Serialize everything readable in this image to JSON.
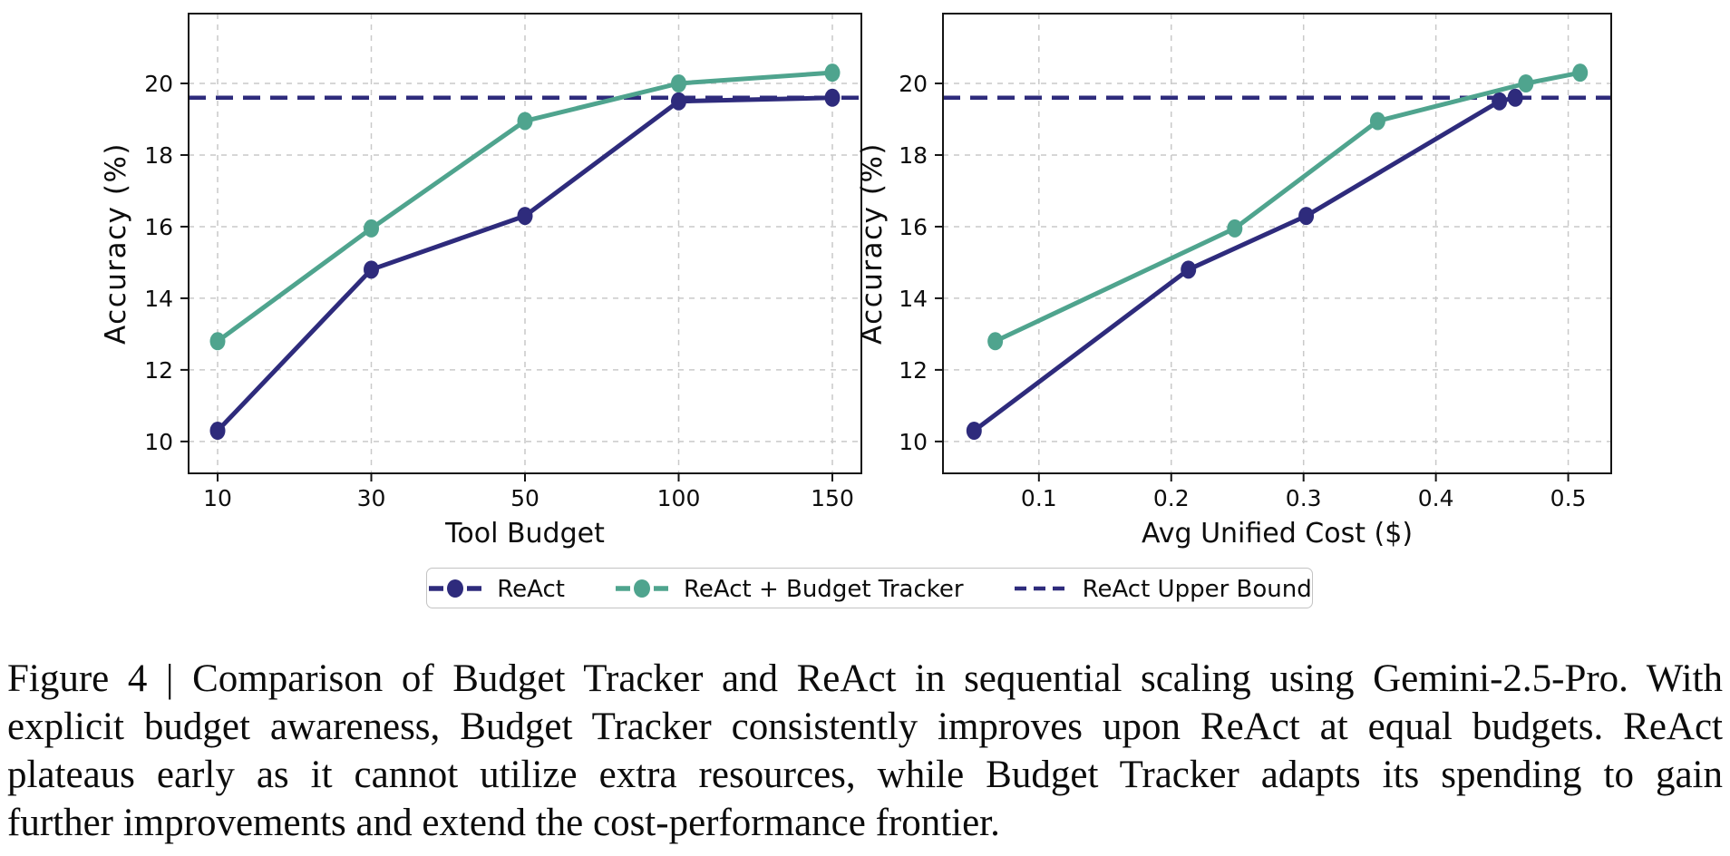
{
  "colors": {
    "react": "#2E2B7C",
    "budget_tracker": "#4FA48E",
    "grid": "#c9c9c9",
    "spine": "#141414",
    "tick_text": "#0d0d0d"
  },
  "legend": {
    "items": [
      {
        "label": "ReAct",
        "marker": "line-circle",
        "color": "#2E2B7C"
      },
      {
        "label": "ReAct + Budget Tracker",
        "marker": "line-circle",
        "color": "#4FA48E"
      },
      {
        "label": "ReAct Upper Bound",
        "marker": "dashed-line",
        "color": "#2E2B7C"
      }
    ]
  },
  "caption": {
    "lines": [
      "Figure 4 | Comparison of Budget Tracker and ReAct in sequential scaling using Gemini-2.5-Pro. With",
      "explicit budget awareness, Budget Tracker consistently improves upon ReAct at equal budgets. ReAct",
      "plateaus early as it cannot utilize extra resources, while Budget Tracker adapts its spending to gain",
      "further improvements and extend the cost-performance frontier."
    ]
  },
  "chart_data": [
    {
      "type": "line",
      "title": "",
      "xlabel": "Tool Budget",
      "ylabel": "Accuracy (%)",
      "x_mode": "index",
      "x_ticks": [
        10,
        30,
        50,
        100,
        150
      ],
      "x_tick_labels": [
        "10",
        "30",
        "50",
        "100",
        "150"
      ],
      "y_ticks": [
        10,
        12,
        14,
        16,
        18,
        20
      ],
      "y_tick_labels": [
        "10",
        "12",
        "14",
        "16",
        "18",
        "20"
      ],
      "ylim": [
        9.11,
        21.95
      ],
      "grid": true,
      "series": [
        {
          "name": "ReAct",
          "color": "#2E2B7C",
          "x": [
            10,
            30,
            50,
            100,
            150
          ],
          "y": [
            10.3,
            14.8,
            16.3,
            19.5,
            19.6
          ]
        },
        {
          "name": "ReAct + Budget Tracker",
          "color": "#4FA48E",
          "x": [
            10,
            30,
            50,
            100,
            150
          ],
          "y": [
            12.8,
            15.95,
            18.95,
            20.0,
            20.3
          ]
        }
      ],
      "hline": {
        "name": "ReAct Upper Bound",
        "y": 19.6,
        "color": "#2E2B7C",
        "style": "dashed"
      }
    },
    {
      "type": "line",
      "title": "",
      "xlabel": "Avg Unified Cost ($)",
      "ylabel": "Accuracy (%)",
      "x_mode": "linear",
      "xlim": [
        0.0275,
        0.5325
      ],
      "x_ticks": [
        0.1,
        0.2,
        0.3,
        0.4,
        0.5
      ],
      "x_tick_labels": [
        "0.1",
        "0.2",
        "0.3",
        "0.4",
        "0.5"
      ],
      "y_ticks": [
        10,
        12,
        14,
        16,
        18,
        20
      ],
      "y_tick_labels": [
        "10",
        "12",
        "14",
        "16",
        "18",
        "20"
      ],
      "ylim": [
        9.11,
        21.95
      ],
      "grid": true,
      "series": [
        {
          "name": "ReAct",
          "color": "#2E2B7C",
          "x": [
            0.051,
            0.213,
            0.302,
            0.448,
            0.46
          ],
          "y": [
            10.3,
            14.8,
            16.3,
            19.5,
            19.6
          ]
        },
        {
          "name": "ReAct + Budget Tracker",
          "color": "#4FA48E",
          "x": [
            0.067,
            0.248,
            0.356,
            0.468,
            0.509
          ],
          "y": [
            12.8,
            15.95,
            18.95,
            20.0,
            20.3
          ]
        }
      ],
      "hline": {
        "name": "ReAct Upper Bound",
        "y": 19.6,
        "color": "#2E2B7C",
        "style": "dashed"
      }
    }
  ]
}
